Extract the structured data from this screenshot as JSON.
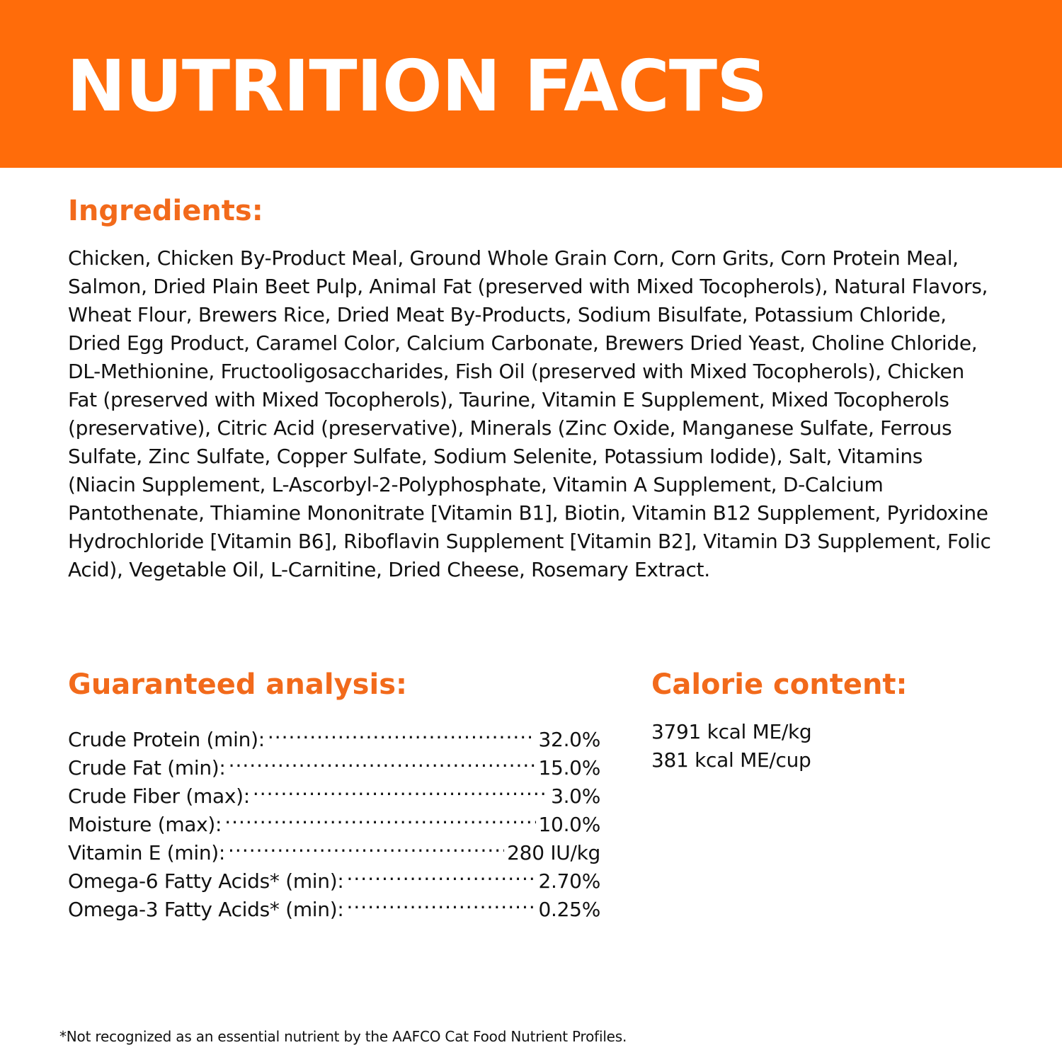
{
  "banner": {
    "title": "NUTRITION FACTS",
    "color": "#ff6c0a"
  },
  "accent_color": "#f26a1b",
  "ingredients": {
    "heading": "Ingredients:",
    "text": "Chicken, Chicken By-Product Meal, Ground Whole Grain Corn, Corn Grits, Corn Protein Meal, Salmon, Dried Plain Beet Pulp, Animal Fat (preserved with Mixed Tocopherols), Natural Flavors, Wheat Flour, Brewers Rice, Dried Meat By-Products, Sodium Bisulfate, Potassium Chloride, Dried Egg Product, Caramel Color, Calcium Carbonate, Brewers Dried Yeast, Choline Chloride, DL-Methionine, Fructooligosaccharides, Fish Oil (preserved with Mixed Tocopherols), Chicken Fat (preserved with Mixed Tocopherols), Taurine, Vitamin E Supplement, Mixed Tocopherols (preservative), Citric Acid (preservative), Minerals (Zinc Oxide, Manganese Sulfate, Ferrous Sulfate, Zinc Sulfate, Copper Sulfate, Sodium Selenite, Potassium Iodide), Salt, Vitamins (Niacin Supplement, L-Ascorbyl-2-Polyphosphate, Vitamin A Supplement, D-Calcium Pantothenate, Thiamine Mononitrate [Vitamin B1], Biotin, Vitamin B12 Supplement, Pyridoxine Hydrochloride [Vitamin B6], Riboflavin Supplement [Vitamin B2], Vitamin D3 Supplement, Folic Acid), Vegetable Oil, L-Carnitine, Dried Cheese, Rosemary Extract."
  },
  "guaranteed_analysis": {
    "heading": "Guaranteed analysis:",
    "rows": [
      {
        "label": "Crude Protein (min):",
        "value": "32.0%"
      },
      {
        "label": "Crude Fat (min):",
        "value": "15.0%"
      },
      {
        "label": "Crude Fiber (max):",
        "value": "3.0%"
      },
      {
        "label": "Moisture (max):",
        "value": "10.0%"
      },
      {
        "label": "Vitamin E (min):",
        "value": "280 IU/kg"
      },
      {
        "label": "Omega-6 Fatty Acids* (min):",
        "value": "2.70%"
      },
      {
        "label": "Omega-3 Fatty Acids* (min):",
        "value": "0.25%"
      }
    ]
  },
  "calorie_content": {
    "heading": "Calorie content:",
    "rows": [
      "3791 kcal ME/kg",
      "381 kcal ME/cup"
    ]
  },
  "footnote": "*Not recognized as an essential nutrient by the AAFCO Cat Food Nutrient Profiles."
}
